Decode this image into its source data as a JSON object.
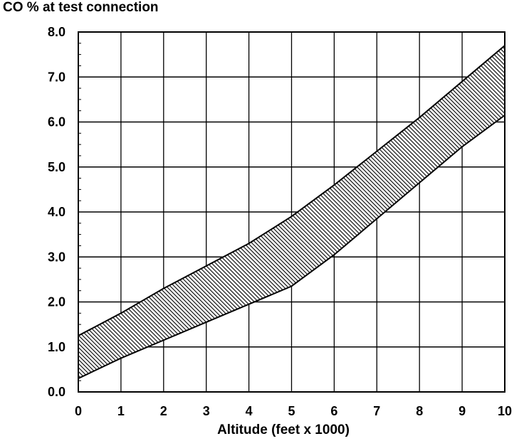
{
  "chart_data": {
    "type": "area",
    "title": "",
    "ylabel": "CO % at test connection",
    "xlabel": "Altitude (feet x 1000)",
    "xlim": [
      0,
      10
    ],
    "ylim": [
      0,
      8
    ],
    "x_ticks": [
      "0",
      "1",
      "2",
      "3",
      "4",
      "5",
      "6",
      "7",
      "8",
      "9",
      "10"
    ],
    "y_ticks": [
      "0.0",
      "1.0",
      "2.0",
      "3.0",
      "4.0",
      "5.0",
      "6.0",
      "7.0",
      "8.0"
    ],
    "grid": true,
    "band": {
      "fill": "hatched",
      "upper": {
        "x": [
          0,
          1,
          2,
          3,
          4,
          5,
          6,
          7,
          8,
          9,
          10
        ],
        "y": [
          1.25,
          1.75,
          2.3,
          2.8,
          3.3,
          3.9,
          4.6,
          5.35,
          6.1,
          6.9,
          7.7
        ]
      },
      "lower": {
        "x": [
          0,
          1,
          2,
          3,
          4,
          5,
          6,
          7,
          8,
          9,
          10
        ],
        "y": [
          0.3,
          0.75,
          1.15,
          1.55,
          1.95,
          2.35,
          3.05,
          3.85,
          4.65,
          5.45,
          6.15
        ]
      }
    }
  }
}
